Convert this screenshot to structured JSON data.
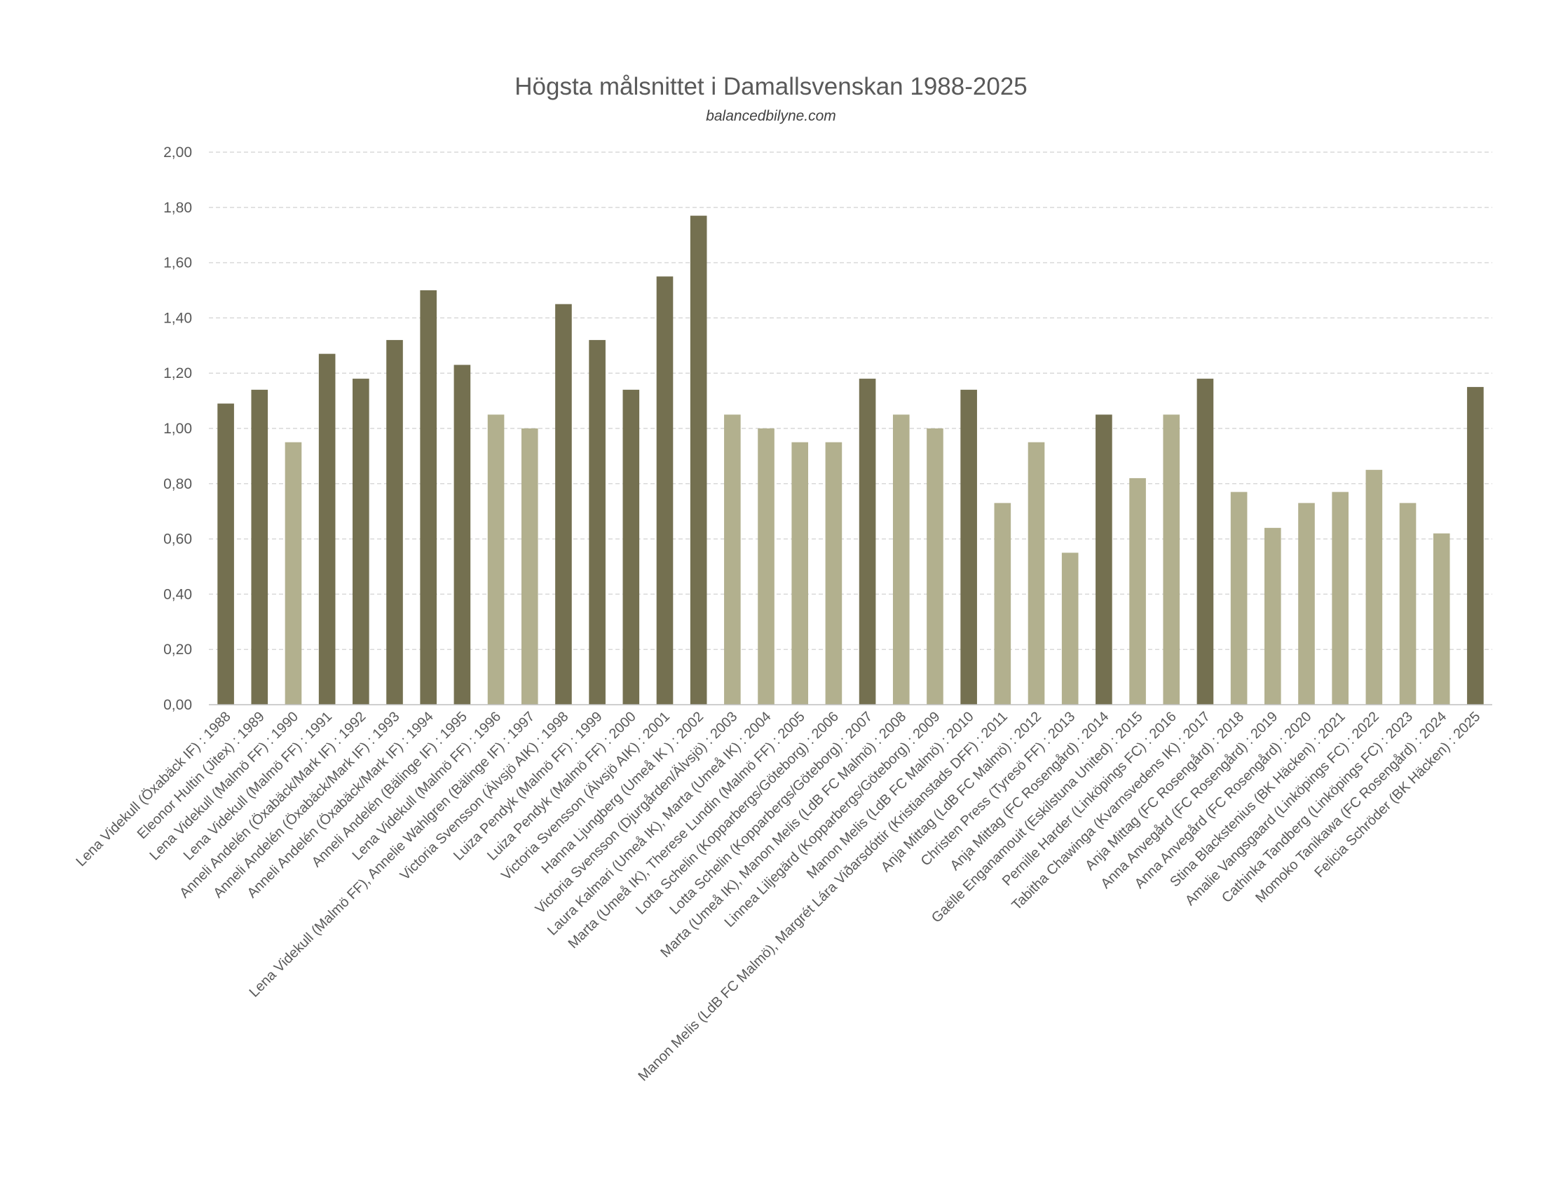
{
  "chart_data": {
    "type": "bar",
    "title": "Högsta målsnittet i Damallsvenskan 1988-2025",
    "subtitle": "balancedbilyne.com",
    "xlabel": "",
    "ylabel": "",
    "ylim": [
      0,
      2
    ],
    "y_ticks": [
      "0,00",
      "0,20",
      "0,40",
      "0,60",
      "0,80",
      "1,00",
      "1,20",
      "1,40",
      "1,60",
      "1,80",
      "2,00"
    ],
    "grid": "horizontal dashed",
    "legend": "none",
    "colors": {
      "highlight": "#747050",
      "default": "#b2b08e",
      "text": "#595959",
      "grid": "#d9d9d9"
    },
    "categories": [
      "Lena Videkull (Öxabäck IF) : 1988",
      "Eleonor Hultin (Jitex) : 1989",
      "Lena Videkull (Malmö FF) : 1990",
      "Lena Videkull (Malmö FF) : 1991",
      "Anneli Andelén (Öxabäck/Mark IF) : 1992",
      "Anneli Andelén (Öxabäck/Mark IF) : 1993",
      "Anneli Andelén (Öxabäck/Mark IF) : 1994",
      "Anneli Andelén (Bälinge IF) : 1995",
      "Lena Videkull (Malmö FF) : 1996",
      "Lena Videkull (Malmö FF), Annelie Wahlgren (Bälinge IF) : 1997",
      "Victoria Svensson (Älvsjö AIK) : 1998",
      "Luiza Pendyk (Malmö FF) : 1999",
      "Luiza Pendyk (Malmö FF) : 2000",
      "Victoria Svensson (Älvsjö AIK) : 2001",
      "Hanna Ljungberg (Umeå IK ) : 2002",
      "Victoria Svensson (Djurgården/Älvsjö) : 2003",
      "Laura Kalmari (Umeå IK), Marta (Umeå IK) : 2004",
      "Marta (Umeå IK), Therese Lundin (Malmö FF) : 2005",
      "Lotta Schelin (Kopparbergs/Göteborg) : 2006",
      "Lotta Schelin (Kopparbergs/Göteborg) : 2007",
      "Marta (Umeå IK), Manon Melis (LdB FC Malmö) : 2008",
      "Linnea Liljegärd (Kopparbergs/Göteborg) : 2009",
      "Manon Melis (LdB FC Malmö) : 2010",
      "Manon Melis (LdB FC Malmö), Margrét Lára Viðarsdóttir (Kristianstads DFF) : 2011",
      "Anja Mittag (LdB FC Malmö) : 2012",
      "Christen Press (Tyresö FF) : 2013",
      "Anja Mittag (FC Rosengård) : 2014",
      "Gaëlle Enganamouit (Eskilstuna United) : 2015",
      "Pernille Harder (Linköpings FC) : 2016",
      "Tabitha Chawinga (Kvarnsvedens IK) : 2017",
      "Anja Mittag (FC Rosengård) : 2018",
      "Anna Anvegård (FC Rosengård) : 2019",
      "Anna Anvegård (FC Rosengård) : 2020",
      "Stina Blackstenius (BK Häcken) : 2021",
      "Amalie Vangsgaard (Linköpings FC) : 2022",
      "Cathinka Tandberg (Linköpings FC) : 2023",
      "Momoko Tanikawa (FC Rosengård) : 2024",
      "Felicia Schröder (BK Häcken) : 2025"
    ],
    "values": [
      1.09,
      1.14,
      0.95,
      1.27,
      1.18,
      1.32,
      1.5,
      1.23,
      1.05,
      1.0,
      1.45,
      1.32,
      1.14,
      1.55,
      1.77,
      1.05,
      1.0,
      0.95,
      0.95,
      1.18,
      1.05,
      1.0,
      1.14,
      0.73,
      0.95,
      0.55,
      1.05,
      0.82,
      1.05,
      1.18,
      0.77,
      0.64,
      0.73,
      0.77,
      0.85,
      0.73,
      0.62,
      1.15
    ],
    "highlighted": [
      true,
      true,
      false,
      true,
      true,
      true,
      true,
      true,
      false,
      false,
      true,
      true,
      true,
      true,
      true,
      false,
      false,
      false,
      false,
      true,
      false,
      false,
      true,
      false,
      false,
      false,
      true,
      false,
      false,
      true,
      false,
      false,
      false,
      false,
      false,
      false,
      false,
      true
    ]
  }
}
